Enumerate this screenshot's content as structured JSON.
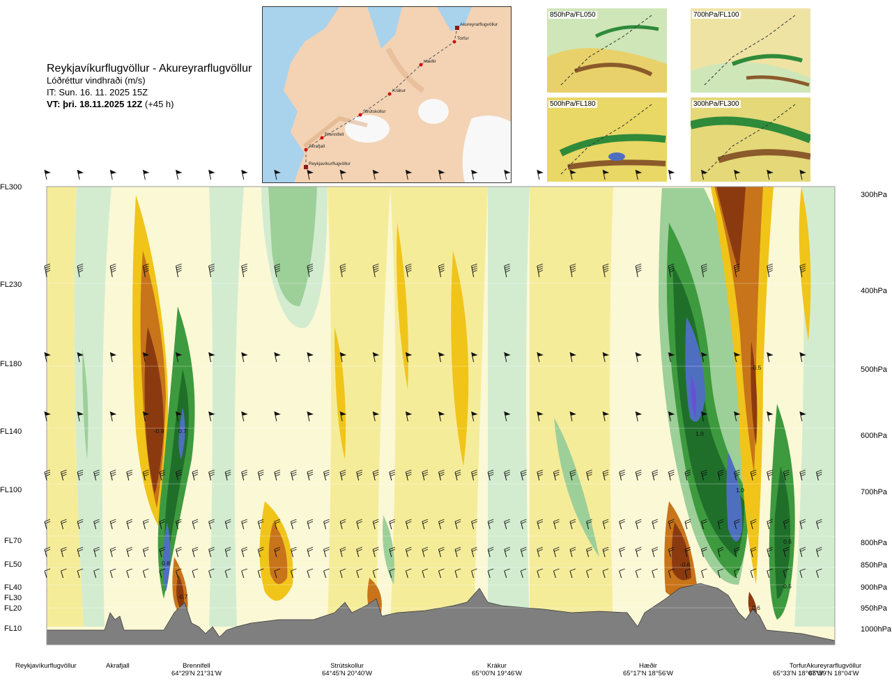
{
  "header": {
    "title": "Reykjavíkurflugvöllur - Akureyrarflugvöllur",
    "subtitle": "Lóðréttur vindhraði (m/s)",
    "issue_time": "IT: Sun. 16. 11. 2025 15Z",
    "valid_time": "VT: þri. 18.11.2025 12Z",
    "valid_offset": " (+45 h)"
  },
  "route_map": {
    "waypoints": [
      "Akureyrarflugvöllur",
      "Torfur",
      "Hæðir",
      "Krákur",
      "Strútskollur",
      "Brennifell",
      "Akrafjall",
      "Reykjavíkurflugvöllur"
    ]
  },
  "thumbnails": [
    {
      "label": "850hPa/FL050"
    },
    {
      "label": "700hPa/FL100"
    },
    {
      "label": "500hPa/FL180"
    },
    {
      "label": "300hPa/FL300"
    }
  ],
  "flight_levels": [
    "FL300",
    "FL230",
    "FL180",
    "FL140",
    "FL100",
    "FL70",
    "FL50",
    "FL40",
    "FL30",
    "FL20",
    "FL10"
  ],
  "pressure_levels": [
    "300hPa",
    "400hPa",
    "500hPa",
    "600hPa",
    "700hPa",
    "800hPa",
    "850hPa",
    "900hPa",
    "950hPa",
    "1000hPa"
  ],
  "locations": [
    {
      "name": "Reykjavíkurflugvöllur",
      "coord": ""
    },
    {
      "name": "Akrafjall",
      "coord": ""
    },
    {
      "name": "Brennifell",
      "coord": "64°29'N 21°31'W"
    },
    {
      "name": "Strútskollur",
      "coord": "64°45'N 20°40'W"
    },
    {
      "name": "Krákur",
      "coord": "65°00'N 19°46'W"
    },
    {
      "name": "Hæðir",
      "coord": "65°17'N 18°56'W"
    },
    {
      "name": "Torfur",
      "coord": "65°33'N 18°07'W"
    },
    {
      "name": "Akureyrarflugvöllur",
      "coord": "65°39'N 18°04'W"
    }
  ],
  "chart_data": {
    "type": "heatmap",
    "title": "Reykjavíkurflugvöllur - Akureyrarflugvöllur",
    "quantity": "Lóðréttur vindhraði (m/s)",
    "y_axis_left": [
      "FL300",
      "FL230",
      "FL180",
      "FL140",
      "FL100",
      "FL70",
      "FL50",
      "FL40",
      "FL30",
      "FL20",
      "FL10"
    ],
    "y_axis_right": [
      "300hPa",
      "400hPa",
      "500hPa",
      "600hPa",
      "700hPa",
      "800hPa",
      "850hPa",
      "900hPa",
      "950hPa",
      "1000hPa"
    ],
    "colors": {
      "strong_downward": "#8b3a10",
      "moderate_downward": "#c8741a",
      "weak_downward": "#f0c419",
      "very_weak_downward": "#f5ec9a",
      "near_zero": "#fbf8d6",
      "very_weak_upward": "#d3ecd0",
      "weak_upward": "#9dcf99",
      "moderate_upward": "#3e9a3e",
      "strong_upward": "#1f6f2a",
      "very_strong_upward": "#4e6fc0",
      "extreme_upward": "#6a4fd6",
      "terrain": "#7f7f7f"
    },
    "annotations": [
      {
        "text": "-0.9"
      },
      {
        "text": "0.7"
      },
      {
        "text": "0.8"
      },
      {
        "text": "-0.7"
      },
      {
        "text": "1.0"
      },
      {
        "text": "1.0"
      },
      {
        "text": "-0.5"
      },
      {
        "text": "-0.6"
      },
      {
        "text": "0.6"
      },
      {
        "text": "0.5"
      },
      {
        "text": "0.6"
      }
    ]
  }
}
